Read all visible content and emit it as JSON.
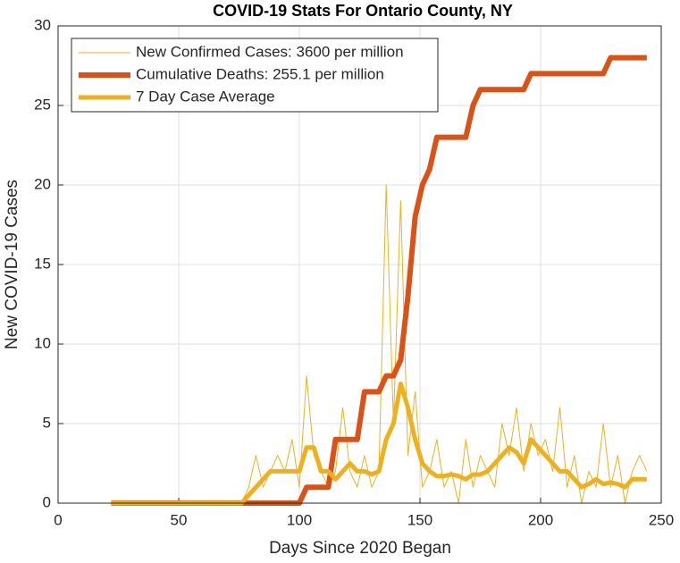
{
  "chart_data": {
    "type": "line",
    "title": "COVID-19 Stats For Ontario County, NY",
    "x_label": "Days Since 2020 Began",
    "y_label": "New COVID-19 Cases",
    "xlim": [
      0,
      250
    ],
    "xticks": [
      0,
      50,
      100,
      150,
      200,
      250
    ],
    "ylim": [
      0,
      30
    ],
    "yticks": [
      0,
      5,
      10,
      15,
      20,
      25,
      30
    ],
    "grid": true,
    "legend": "upper left",
    "x": [
      22,
      25,
      28,
      31,
      34,
      37,
      40,
      43,
      46,
      49,
      52,
      55,
      58,
      61,
      64,
      67,
      70,
      73,
      76,
      79,
      82,
      85,
      88,
      91,
      94,
      97,
      100,
      103,
      106,
      109,
      112,
      115,
      118,
      121,
      124,
      127,
      130,
      133,
      136,
      139,
      142,
      145,
      148,
      151,
      154,
      157,
      160,
      163,
      166,
      169,
      172,
      175,
      178,
      181,
      184,
      187,
      190,
      193,
      196,
      199,
      202,
      205,
      208,
      211,
      214,
      217,
      220,
      223,
      226,
      229,
      232,
      235,
      238,
      241,
      244
    ],
    "series": [
      {
        "name": "New Confirmed Cases: 3600 per million",
        "color": "#edb120",
        "width": 1,
        "values": [
          0,
          0,
          0,
          0,
          0,
          0,
          0,
          0,
          0,
          0,
          0,
          0,
          0,
          0,
          0,
          0,
          0,
          0,
          0,
          1,
          3,
          1,
          2,
          3,
          2,
          4,
          1,
          8,
          3,
          2,
          1,
          2,
          6,
          2,
          1,
          3,
          1,
          2,
          20,
          5,
          19,
          3,
          7,
          1,
          2,
          4,
          1,
          2,
          0,
          4,
          1,
          3,
          2,
          1,
          5,
          3,
          6,
          2,
          5,
          3,
          4,
          2,
          6,
          1,
          3,
          0,
          2,
          1,
          5,
          1,
          3,
          0,
          2,
          3,
          2
        ]
      },
      {
        "name": "Cumulative Deaths: 255.1 per million",
        "color": "#d95319",
        "width": 6,
        "values": [
          0,
          0,
          0,
          0,
          0,
          0,
          0,
          0,
          0,
          0,
          0,
          0,
          0,
          0,
          0,
          0,
          0,
          0,
          0,
          0,
          0,
          0,
          0,
          0,
          0,
          0,
          0,
          1,
          1,
          1,
          1,
          4,
          4,
          4,
          4,
          7,
          7,
          7,
          8,
          8,
          9,
          13,
          18,
          20,
          21,
          23,
          23,
          23,
          23,
          23,
          25,
          26,
          26,
          26,
          26,
          26,
          26,
          26,
          27,
          27,
          27,
          27,
          27,
          27,
          27,
          27,
          27,
          27,
          27,
          28,
          28,
          28,
          28,
          28,
          28
        ]
      },
      {
        "name": "7 Day Case Average",
        "color": "#edb120",
        "width": 5,
        "values": [
          0,
          0,
          0,
          0,
          0,
          0,
          0,
          0,
          0,
          0,
          0,
          0,
          0,
          0,
          0,
          0,
          0,
          0,
          0,
          0.5,
          1,
          1.5,
          2,
          2,
          2,
          2,
          2,
          3.5,
          3.5,
          2,
          2,
          1.5,
          2,
          2.5,
          2,
          2,
          1.8,
          2,
          4,
          5,
          7.5,
          6,
          4,
          2.5,
          2,
          1.7,
          1.7,
          1.8,
          1.7,
          1.5,
          1.8,
          1.8,
          2,
          2.5,
          3,
          3.5,
          3.2,
          2.5,
          4,
          3.5,
          3,
          2.5,
          2,
          2,
          1.5,
          1,
          1.2,
          1.5,
          1.2,
          1.3,
          1.2,
          1,
          1.5,
          1.5,
          1.5
        ]
      }
    ]
  }
}
